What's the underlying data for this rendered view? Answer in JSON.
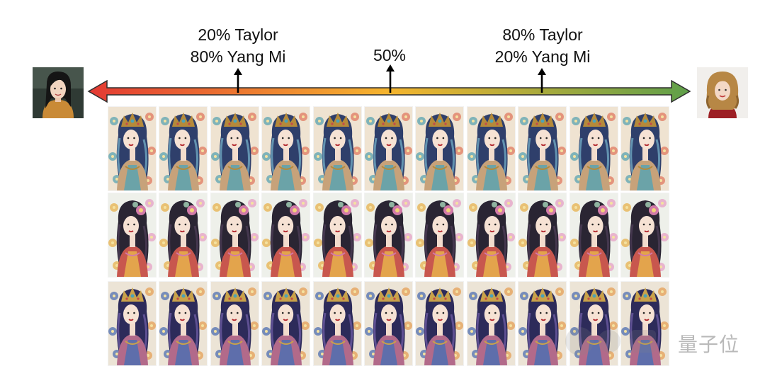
{
  "labels": [
    {
      "line1": "20% Taylor",
      "line2": "80% Yang Mi"
    },
    {
      "line1": "50%"
    },
    {
      "line1": "80% Taylor",
      "line2": "20% Yang Mi"
    }
  ],
  "left_portrait": "portrait-yang-mi",
  "right_portrait": "portrait-taylor",
  "spectrum": {
    "from_color": "#e33a33",
    "mid_color": "#f5b52e",
    "to_color": "#5fa04a"
  },
  "grid": {
    "rows": 3,
    "columns": 11
  },
  "watermark": "量子位"
}
